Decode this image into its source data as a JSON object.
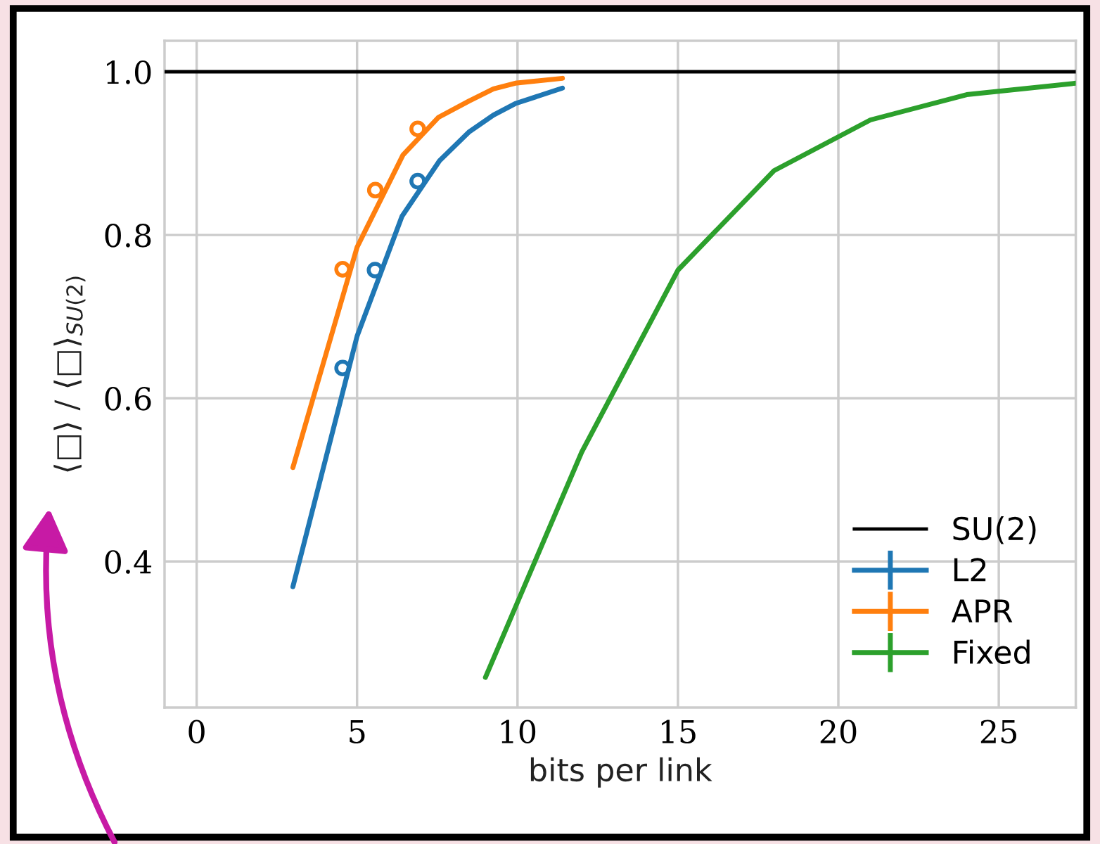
{
  "chart_data": {
    "type": "line",
    "xlabel": "bits per link",
    "ylabel": "⟨□⟩ / ⟨□⟩$_{SU(2)}$",
    "xlim": [
      -1,
      27.4
    ],
    "ylim": [
      0.221,
      1.038
    ],
    "xticks": [
      0,
      5,
      10,
      15,
      20,
      25
    ],
    "yticks": [
      {
        "value": 0.4,
        "label": "0.4"
      },
      {
        "value": 0.6,
        "label": "0.6"
      },
      {
        "value": 0.8,
        "label": "0.8"
      },
      {
        "value": 1.0,
        "label": "1.0"
      }
    ],
    "grid": true,
    "legend": "bottom right",
    "line_style": "solid",
    "ref_lines": [
      {
        "axis": "y",
        "value": 1.0,
        "label": "SU(2)",
        "color": "#000000"
      }
    ],
    "series": [
      {
        "name": "L2",
        "color": "#1f77b4",
        "x": [
          3.0,
          5.0,
          6.4,
          7.57,
          8.48,
          9.25,
          9.93,
          11.4
        ],
        "values": [
          0.369,
          0.676,
          0.823,
          0.891,
          0.926,
          0.947,
          0.961,
          0.98
        ]
      },
      {
        "name": "APR",
        "color": "#ff7f0e",
        "x": [
          3.0,
          5.0,
          6.43,
          7.53,
          8.48,
          9.25,
          9.93,
          11.4
        ],
        "values": [
          0.515,
          0.785,
          0.898,
          0.944,
          0.964,
          0.979,
          0.986,
          0.992
        ]
      },
      {
        "name": "Fixed",
        "color": "#2ca02c",
        "x": [
          9,
          12,
          15,
          18,
          21,
          24,
          27.4
        ],
        "values": [
          0.258,
          0.534,
          0.757,
          0.879,
          0.941,
          0.972,
          0.986
        ]
      },
      {
        "type": "scatter",
        "marker": "circle",
        "color": "#1f77b4",
        "x": [
          4.55,
          5.56,
          6.89
        ],
        "values": [
          0.637,
          0.757,
          0.866
        ]
      },
      {
        "type": "scatter",
        "marker": "circle",
        "color": "#ff7f0e",
        "x": [
          4.55,
          5.57,
          6.89
        ],
        "values": [
          0.758,
          0.855,
          0.93
        ]
      }
    ]
  }
}
